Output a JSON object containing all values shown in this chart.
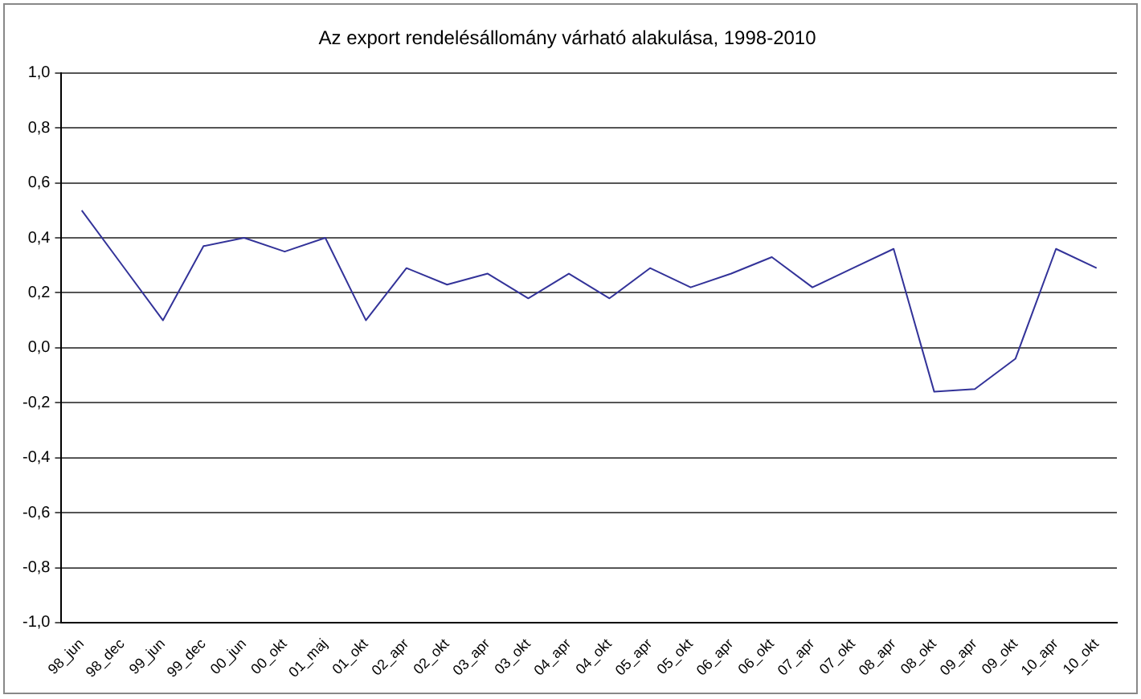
{
  "chart_data": {
    "type": "line",
    "title": "Az export rendelésállomány várható alakulása, 1998-2010",
    "categories": [
      "98_jun",
      "98_dec",
      "99_jun",
      "99_dec",
      "00_jun",
      "00_okt",
      "01_maj",
      "01_okt",
      "02_apr",
      "02_okt",
      "03_apr",
      "03_okt",
      "04_apr",
      "04_okt",
      "05_apr",
      "05_okt",
      "06_apr",
      "06_okt",
      "07_apr",
      "07_okt",
      "08_apr",
      "08_okt",
      "09_apr",
      "09_okt",
      "10_apr",
      "10_okt"
    ],
    "series": [
      {
        "color": "#333399",
        "values": [
          0.5,
          0.3,
          0.1,
          0.37,
          0.4,
          0.35,
          0.4,
          0.1,
          0.29,
          0.23,
          0.27,
          0.18,
          0.27,
          0.18,
          0.29,
          0.22,
          0.27,
          0.33,
          0.22,
          0.29,
          0.36,
          -0.16,
          -0.15,
          -0.04,
          0.36,
          0.29
        ]
      }
    ],
    "ylim": [
      -1,
      1
    ],
    "yticks": [
      {
        "value": -1,
        "label": "-1,0"
      },
      {
        "value": -0.8,
        "label": "-0,8"
      },
      {
        "value": -0.6,
        "label": "-0,6"
      },
      {
        "value": -0.4,
        "label": "-0,4"
      },
      {
        "value": -0.2,
        "label": "-0,2"
      },
      {
        "value": 0,
        "label": "0,0"
      },
      {
        "value": 0.2,
        "label": "0,2"
      },
      {
        "value": 0.4,
        "label": "0,4"
      },
      {
        "value": 0.6,
        "label": "0,6"
      },
      {
        "value": 0.8,
        "label": "0,8"
      },
      {
        "value": 1,
        "label": "1,0"
      }
    ],
    "grid": "y",
    "legend": false,
    "marker": "none",
    "line_style": "solid"
  }
}
